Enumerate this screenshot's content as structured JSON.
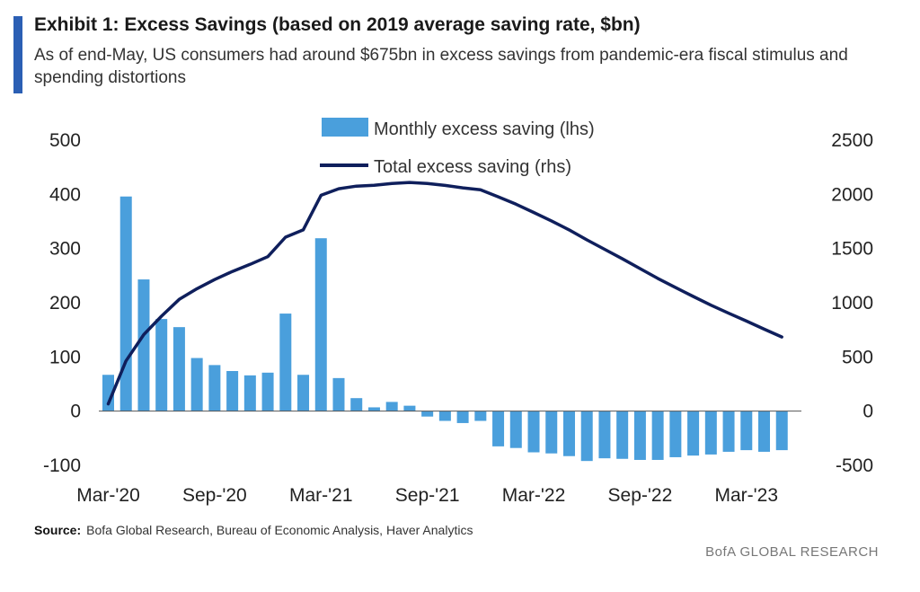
{
  "header": {
    "title": "Exhibit 1: Excess Savings (based on 2019 average saving rate, $bn)",
    "subtitle": "As of end-May, US consumers had around $675bn in excess savings from pandemic-era fiscal stimulus and spending distortions"
  },
  "footer": {
    "source_label": "Source:",
    "source_text": "Bofa Global Research, Bureau of Economic Analysis, Haver Analytics",
    "brand": "BofA GLOBAL RESEARCH"
  },
  "colors": {
    "bar": "#4a9fdc",
    "line": "#0f1f5c",
    "accent": "#2b5fb4"
  },
  "chart_data": {
    "type": "bar+line",
    "x": [
      "Mar-20",
      "Apr-20",
      "May-20",
      "Jun-20",
      "Jul-20",
      "Aug-20",
      "Sep-20",
      "Oct-20",
      "Nov-20",
      "Dec-20",
      "Jan-21",
      "Feb-21",
      "Mar-21",
      "Apr-21",
      "May-21",
      "Jun-21",
      "Jul-21",
      "Aug-21",
      "Sep-21",
      "Oct-21",
      "Nov-21",
      "Dec-21",
      "Jan-22",
      "Feb-22",
      "Mar-22",
      "Apr-22",
      "May-22",
      "Jun-22",
      "Jul-22",
      "Aug-22",
      "Sep-22",
      "Oct-22",
      "Nov-22",
      "Dec-22",
      "Jan-23",
      "Feb-23",
      "Mar-23",
      "Apr-23",
      "May-23"
    ],
    "x_tick_labels": [
      "Mar-'20",
      "Sep-'20",
      "Mar-'21",
      "Sep-'21",
      "Mar-'22",
      "Sep-'22",
      "Mar-'23"
    ],
    "x_tick_indices": [
      0,
      6,
      12,
      18,
      24,
      30,
      36
    ],
    "series": [
      {
        "name": "Monthly excess saving (lhs)",
        "type": "bar",
        "axis": "left",
        "values": [
          67,
          396,
          243,
          170,
          155,
          98,
          85,
          74,
          66,
          71,
          180,
          67,
          319,
          61,
          24,
          7,
          17,
          10,
          -10,
          -18,
          -22,
          -18,
          -65,
          -68,
          -76,
          -78,
          -83,
          -92,
          -87,
          -88,
          -90,
          -90,
          -85,
          -82,
          -80,
          -75,
          -72,
          -75,
          -72
        ]
      },
      {
        "name": "Total excess saving (rhs)",
        "type": "line",
        "axis": "right",
        "values": [
          67,
          463,
          706,
          876,
          1031,
          1129,
          1214,
          1288,
          1354,
          1425,
          1605,
          1672,
          1991,
          2052,
          2076,
          2083,
          2100,
          2110,
          2100,
          2082,
          2060,
          2042,
          1977,
          1909,
          1833,
          1755,
          1672,
          1580,
          1493,
          1405,
          1315,
          1225,
          1140,
          1058,
          978,
          903,
          831,
          756,
          684
        ]
      }
    ],
    "left_axis": {
      "range": [
        -100,
        500
      ],
      "ticks": [
        -100,
        0,
        100,
        200,
        300,
        400,
        500
      ]
    },
    "right_axis": {
      "range": [
        -500,
        2500
      ],
      "ticks": [
        -500,
        0,
        500,
        1000,
        1500,
        2000,
        2500
      ]
    },
    "grid": false,
    "legend_placement": "top-center"
  }
}
